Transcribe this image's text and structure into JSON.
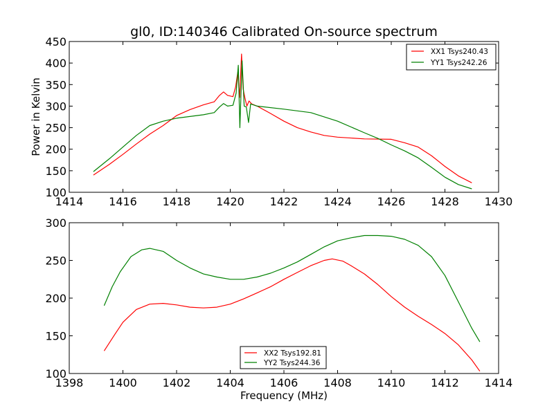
{
  "chart_data": [
    {
      "type": "line",
      "title": "gl0, ID:140346 Calibrated On-source spectrum",
      "xlabel": "",
      "ylabel": "Power in Kelvin",
      "xlim": [
        1414,
        1430
      ],
      "ylim": [
        100,
        450
      ],
      "xticks": [
        "1414",
        "1416",
        "1418",
        "1420",
        "1422",
        "1424",
        "1426",
        "1428",
        "1430"
      ],
      "yticks": [
        "100",
        "150",
        "200",
        "250",
        "300",
        "350",
        "400",
        "450"
      ],
      "grid": false,
      "legend_position": "top-right",
      "series": [
        {
          "name": "XX1 Tsys240.43",
          "color": "#ff0000",
          "x": [
            1414.9,
            1415.5,
            1416.0,
            1416.5,
            1417.0,
            1417.5,
            1418.0,
            1418.5,
            1419.0,
            1419.4,
            1419.6,
            1419.75,
            1419.9,
            1420.1,
            1420.2,
            1420.28,
            1420.35,
            1420.42,
            1420.48,
            1420.55,
            1420.62,
            1420.7,
            1420.8,
            1421.0,
            1421.5,
            1422.0,
            1422.5,
            1423.0,
            1423.5,
            1424.0,
            1425.0,
            1426.0,
            1426.5,
            1427.0,
            1427.5,
            1428.0,
            1428.5,
            1429.0
          ],
          "y": [
            140,
            165,
            188,
            212,
            235,
            255,
            278,
            292,
            303,
            310,
            325,
            333,
            325,
            322,
            345,
            378,
            320,
            421,
            340,
            318,
            300,
            312,
            305,
            300,
            283,
            265,
            250,
            240,
            232,
            228,
            224,
            223,
            215,
            205,
            185,
            160,
            138,
            122
          ]
        },
        {
          "name": "YY1 Tsys242.26",
          "color": "#008000",
          "x": [
            1414.9,
            1415.5,
            1416.0,
            1416.5,
            1417.0,
            1417.5,
            1418.0,
            1418.5,
            1419.0,
            1419.4,
            1419.6,
            1419.75,
            1419.9,
            1420.1,
            1420.22,
            1420.3,
            1420.36,
            1420.44,
            1420.52,
            1420.6,
            1420.68,
            1420.76,
            1421.0,
            1422.0,
            1423.0,
            1424.0,
            1425.0,
            1425.5,
            1426.0,
            1426.5,
            1427.0,
            1427.5,
            1428.0,
            1428.5,
            1429.0
          ],
          "y": [
            148,
            178,
            205,
            232,
            255,
            265,
            272,
            276,
            280,
            285,
            298,
            306,
            300,
            302,
            330,
            395,
            250,
            405,
            300,
            298,
            262,
            305,
            300,
            293,
            285,
            265,
            238,
            225,
            210,
            196,
            180,
            158,
            135,
            118,
            108
          ]
        }
      ]
    },
    {
      "type": "line",
      "title": "",
      "xlabel": "Frequency (MHz)",
      "ylabel": "",
      "xlim": [
        1398,
        1414
      ],
      "ylim": [
        100,
        300
      ],
      "xticks": [
        "1398",
        "1400",
        "1402",
        "1404",
        "1406",
        "1408",
        "1410",
        "1412",
        "1414"
      ],
      "yticks": [
        "100",
        "150",
        "200",
        "250",
        "300"
      ],
      "grid": false,
      "legend_position": "bottom-center",
      "series": [
        {
          "name": "XX2 Tsys192.81",
          "color": "#ff0000",
          "x": [
            1399.3,
            1399.7,
            1400.0,
            1400.5,
            1401.0,
            1401.5,
            1402.0,
            1402.5,
            1403.0,
            1403.5,
            1404.0,
            1404.5,
            1405.0,
            1405.5,
            1406.0,
            1406.5,
            1407.0,
            1407.5,
            1407.8,
            1408.2,
            1408.5,
            1409.0,
            1409.5,
            1410.0,
            1410.5,
            1411.0,
            1411.5,
            1412.0,
            1412.5,
            1413.0,
            1413.3
          ],
          "y": [
            130,
            152,
            168,
            185,
            192,
            193,
            191,
            188,
            187,
            188,
            192,
            199,
            207,
            215,
            225,
            234,
            243,
            250,
            252,
            249,
            243,
            232,
            218,
            202,
            188,
            176,
            165,
            153,
            138,
            118,
            103
          ]
        },
        {
          "name": "YY2 Tsys244.36",
          "color": "#008000",
          "x": [
            1399.3,
            1399.6,
            1399.9,
            1400.3,
            1400.7,
            1401.0,
            1401.5,
            1402.0,
            1402.5,
            1403.0,
            1403.5,
            1404.0,
            1404.5,
            1405.0,
            1405.5,
            1406.0,
            1406.5,
            1407.0,
            1407.5,
            1408.0,
            1408.5,
            1409.0,
            1409.5,
            1410.0,
            1410.5,
            1411.0,
            1411.5,
            1412.0,
            1412.5,
            1413.0,
            1413.3
          ],
          "y": [
            190,
            215,
            235,
            255,
            264,
            266,
            262,
            250,
            240,
            232,
            228,
            225,
            225,
            228,
            233,
            240,
            248,
            258,
            268,
            276,
            280,
            283,
            283,
            282,
            278,
            270,
            255,
            230,
            195,
            160,
            142
          ]
        }
      ]
    }
  ]
}
